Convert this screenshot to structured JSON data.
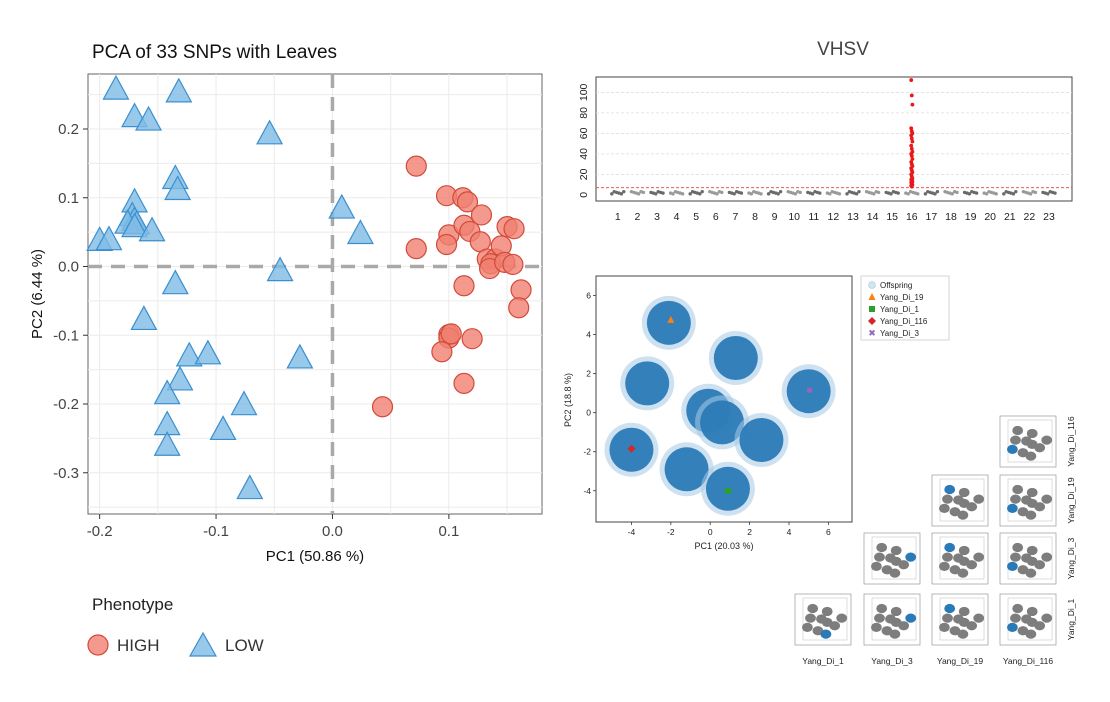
{
  "chart_data": [
    {
      "type": "scatter",
      "title": "PCA of 33 SNPs with Leaves",
      "xlabel": "PC1 (50.86 %)",
      "ylabel": "PC2 (6.44 %)",
      "xlim": [
        -0.21,
        0.18
      ],
      "ylim": [
        -0.36,
        0.28
      ],
      "xticks": [
        -0.2,
        -0.1,
        0.0,
        0.1
      ],
      "xtick_labels": [
        "-0.2",
        "-0.1",
        "0.0",
        "0.1"
      ],
      "yticks": [
        -0.3,
        -0.2,
        -0.1,
        0.0,
        0.1,
        0.2
      ],
      "ytick_labels": [
        "-0.3",
        "-0.2",
        "-0.1",
        "0.0",
        "0.1",
        "0.2"
      ],
      "reference_lines": {
        "x": 0,
        "y": 0,
        "style": "dashed"
      },
      "grid": true,
      "legend": {
        "title": "Phenotype",
        "position": "bottom-left"
      },
      "series": [
        {
          "name": "HIGH",
          "marker": "circle",
          "color": "#f08070",
          "points": [
            [
              0.072,
              0.146
            ],
            [
              0.072,
              0.026
            ],
            [
              0.098,
              0.103
            ],
            [
              0.1,
              0.046
            ],
            [
              0.098,
              0.032
            ],
            [
              0.112,
              0.1
            ],
            [
              0.116,
              0.094
            ],
            [
              0.113,
              0.06
            ],
            [
              0.118,
              0.051
            ],
            [
              0.128,
              0.075
            ],
            [
              0.127,
              0.036
            ],
            [
              0.133,
              0.011
            ],
            [
              0.14,
              0.011
            ],
            [
              0.145,
              0.03
            ],
            [
              0.136,
              0.004
            ],
            [
              0.135,
              -0.003
            ],
            [
              0.148,
              0.006
            ],
            [
              0.15,
              0.058
            ],
            [
              0.156,
              0.055
            ],
            [
              0.155,
              0.003
            ],
            [
              0.162,
              -0.034
            ],
            [
              0.16,
              -0.06
            ],
            [
              0.1,
              -0.099
            ],
            [
              0.1,
              -0.104
            ],
            [
              0.102,
              -0.098
            ],
            [
              0.094,
              -0.124
            ],
            [
              0.12,
              -0.105
            ],
            [
              0.113,
              -0.028
            ],
            [
              0.113,
              -0.17
            ],
            [
              0.043,
              -0.204
            ]
          ]
        },
        {
          "name": "LOW",
          "marker": "triangle",
          "color": "#7fbbe5",
          "points": [
            [
              -0.186,
              0.258
            ],
            [
              -0.132,
              0.254
            ],
            [
              -0.17,
              0.218
            ],
            [
              -0.158,
              0.213
            ],
            [
              -0.054,
              0.193
            ],
            [
              -0.135,
              0.128
            ],
            [
              -0.133,
              0.112
            ],
            [
              -0.17,
              0.094
            ],
            [
              -0.172,
              0.074
            ],
            [
              -0.17,
              0.067
            ],
            [
              -0.176,
              0.063
            ],
            [
              -0.168,
              0.062
            ],
            [
              -0.17,
              0.058
            ],
            [
              -0.155,
              0.052
            ],
            [
              -0.2,
              0.038
            ],
            [
              -0.192,
              0.039
            ],
            [
              0.008,
              0.085
            ],
            [
              0.024,
              0.048
            ],
            [
              -0.045,
              -0.006
            ],
            [
              -0.135,
              -0.025
            ],
            [
              -0.162,
              -0.077
            ],
            [
              -0.123,
              -0.13
            ],
            [
              -0.107,
              -0.127
            ],
            [
              -0.028,
              -0.133
            ],
            [
              -0.131,
              -0.165
            ],
            [
              -0.142,
              -0.185
            ],
            [
              -0.076,
              -0.201
            ],
            [
              -0.142,
              -0.23
            ],
            [
              -0.094,
              -0.237
            ],
            [
              -0.142,
              -0.26
            ],
            [
              -0.071,
              -0.323
            ]
          ]
        }
      ]
    },
    {
      "type": "manhattan",
      "title": "VHSV",
      "yticks": [
        0,
        20,
        40,
        60,
        80,
        100
      ],
      "ytick_labels": [
        "0",
        "20",
        "40",
        "60",
        "80",
        "100"
      ],
      "ylim": [
        -6,
        115
      ],
      "significance_line": 7,
      "categories": [
        "1",
        "2",
        "3",
        "4",
        "5",
        "6",
        "7",
        "8",
        "9",
        "10",
        "11",
        "12",
        "13",
        "14",
        "15",
        "16",
        "17",
        "18",
        "19",
        "20",
        "21",
        "22",
        "23"
      ],
      "peak": {
        "chromosome": "16",
        "max_value": 112,
        "values": [
          112,
          97,
          88,
          65,
          62,
          60,
          58,
          55,
          52,
          48,
          45,
          42,
          40,
          38,
          35,
          32,
          30,
          28,
          26,
          24,
          22,
          20,
          18,
          16,
          15,
          14,
          13,
          12,
          11,
          10,
          9,
          8
        ]
      }
    },
    {
      "type": "scatter",
      "xlabel": "PC1 (20.03 %)",
      "ylabel": "PC2 (18.8 %)",
      "xlim": [
        -5.8,
        7.2
      ],
      "ylim": [
        -5.6,
        7.0
      ],
      "xticks": [
        -4,
        -2,
        0,
        2,
        4,
        6
      ],
      "xtick_labels": [
        "-4",
        "-2",
        "0",
        "2",
        "4",
        "6"
      ],
      "yticks": [
        -4,
        -2,
        0,
        2,
        4,
        6
      ],
      "ytick_labels": [
        "-4",
        "-2",
        "0",
        "2",
        "4",
        "6"
      ],
      "legend": {
        "position": "right",
        "entries": [
          "Offspring",
          "Yang_Di_19",
          "Yang_Di_1",
          "Yang_Di_116",
          "Yang_Di_3"
        ]
      },
      "clusters": [
        [
          -2.1,
          4.6
        ],
        [
          1.3,
          2.8
        ],
        [
          -3.2,
          1.5
        ],
        [
          -0.1,
          0.1
        ],
        [
          0.6,
          -0.5
        ],
        [
          2.6,
          -1.4
        ],
        [
          5.0,
          1.1
        ],
        [
          -4.0,
          -1.9
        ],
        [
          -1.2,
          -2.9
        ],
        [
          0.9,
          -3.9
        ]
      ],
      "series": [
        {
          "name": "Offspring",
          "marker": "circle",
          "color": "#1f77b4"
        },
        {
          "name": "Yang_Di_19",
          "marker": "triangle",
          "color": "#ff7f0e",
          "points": [
            [
              -2.0,
              4.75
            ]
          ]
        },
        {
          "name": "Yang_Di_1",
          "marker": "square",
          "color": "#2ca02c",
          "points": [
            [
              0.9,
              -4.0
            ]
          ]
        },
        {
          "name": "Yang_Di_116",
          "marker": "diamond",
          "color": "#d62728",
          "points": [
            [
              -4.0,
              -1.85
            ]
          ]
        },
        {
          "name": "Yang_Di_3",
          "marker": "x",
          "color": "#9467bd",
          "points": [
            [
              5.05,
              1.15
            ]
          ]
        }
      ]
    },
    {
      "type": "pair-grid",
      "col_labels": [
        "Yang_Di_1",
        "Yang_Di_3",
        "Yang_Di_19",
        "Yang_Di_116"
      ],
      "row_labels": [
        "Yang_Di_116",
        "Yang_Di_19",
        "Yang_Di_3",
        "Yang_Di_1"
      ]
    }
  ]
}
